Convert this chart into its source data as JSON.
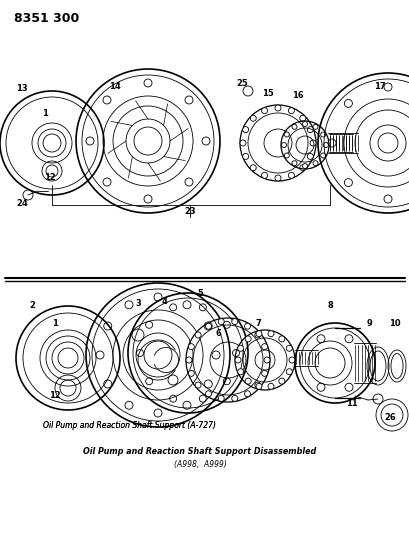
{
  "title": "8351 300",
  "bg_color": "#ffffff",
  "line_color": "#000000",
  "caption1": "Oil Pump and Reaction Shaft Support (A-727)",
  "caption2": "Oil Pump and Reaction Shaft Support Disassembled",
  "caption2b": "(A998,  A999)",
  "figsize": [
    4.1,
    5.33
  ],
  "dpi": 100
}
